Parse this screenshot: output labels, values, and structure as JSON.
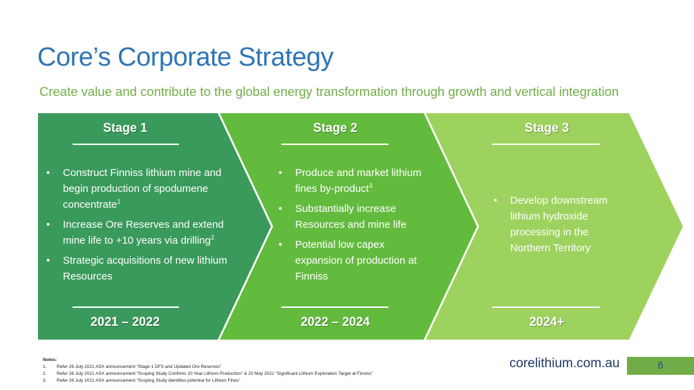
{
  "title": "Core’s Corporate Strategy",
  "subtitle": "Create value and contribute to the global energy transformation through growth and vertical integration",
  "colors": {
    "title": "#2e75b6",
    "subtitle": "#70ad47",
    "stage1": "#3a9a5b",
    "stage2": "#63bb3e",
    "stage3": "#9ed25e",
    "footer_box": "#70ad47"
  },
  "stages": [
    {
      "title": "Stage 1",
      "years": "2021 – 2022",
      "bullets": [
        {
          "text": "Construct Finniss lithium mine and begin production of spodumene concentrate",
          "sup": "1"
        },
        {
          "text": "Increase Ore Reserves and extend mine life to +10 years via drilling",
          "sup": "2"
        },
        {
          "text": "Strategic acquisitions of new lithium Resources",
          "sup": ""
        }
      ]
    },
    {
      "title": "Stage 2",
      "years": "2022 – 2024",
      "bullets": [
        {
          "text": "Produce and market lithium fines by-product",
          "sup": "3"
        },
        {
          "text": "Substantially increase Resources and mine life",
          "sup": ""
        },
        {
          "text": "Potential low capex expansion of production at Finniss",
          "sup": ""
        }
      ]
    },
    {
      "title": "Stage 3",
      "years": "2024+",
      "bullets": [
        {
          "text": "Develop downstream lithium hydroxide processing in the Northern Territory",
          "sup": ""
        }
      ]
    }
  ],
  "notes": {
    "heading": "Notes:",
    "items": [
      {
        "num": "1.",
        "text": "Refer 26 July 2021 ASX announcement “Stage 1 DFS and Updated Ore Reserves”"
      },
      {
        "num": "2.",
        "text": "Refer 26 July 2021 ASX announcement “Scoping Study Confirms 10 Year Lithium Production” & 20 May 2021 “Significant Lithium Exploration Target at Finniss”"
      },
      {
        "num": "3.",
        "text": "Refer 26 July 2021 ASX announcement “Scoping Study identifies potential for Lithium Fines”"
      }
    ]
  },
  "footer": {
    "website": "corelithium.com.au",
    "page_number": "6"
  }
}
